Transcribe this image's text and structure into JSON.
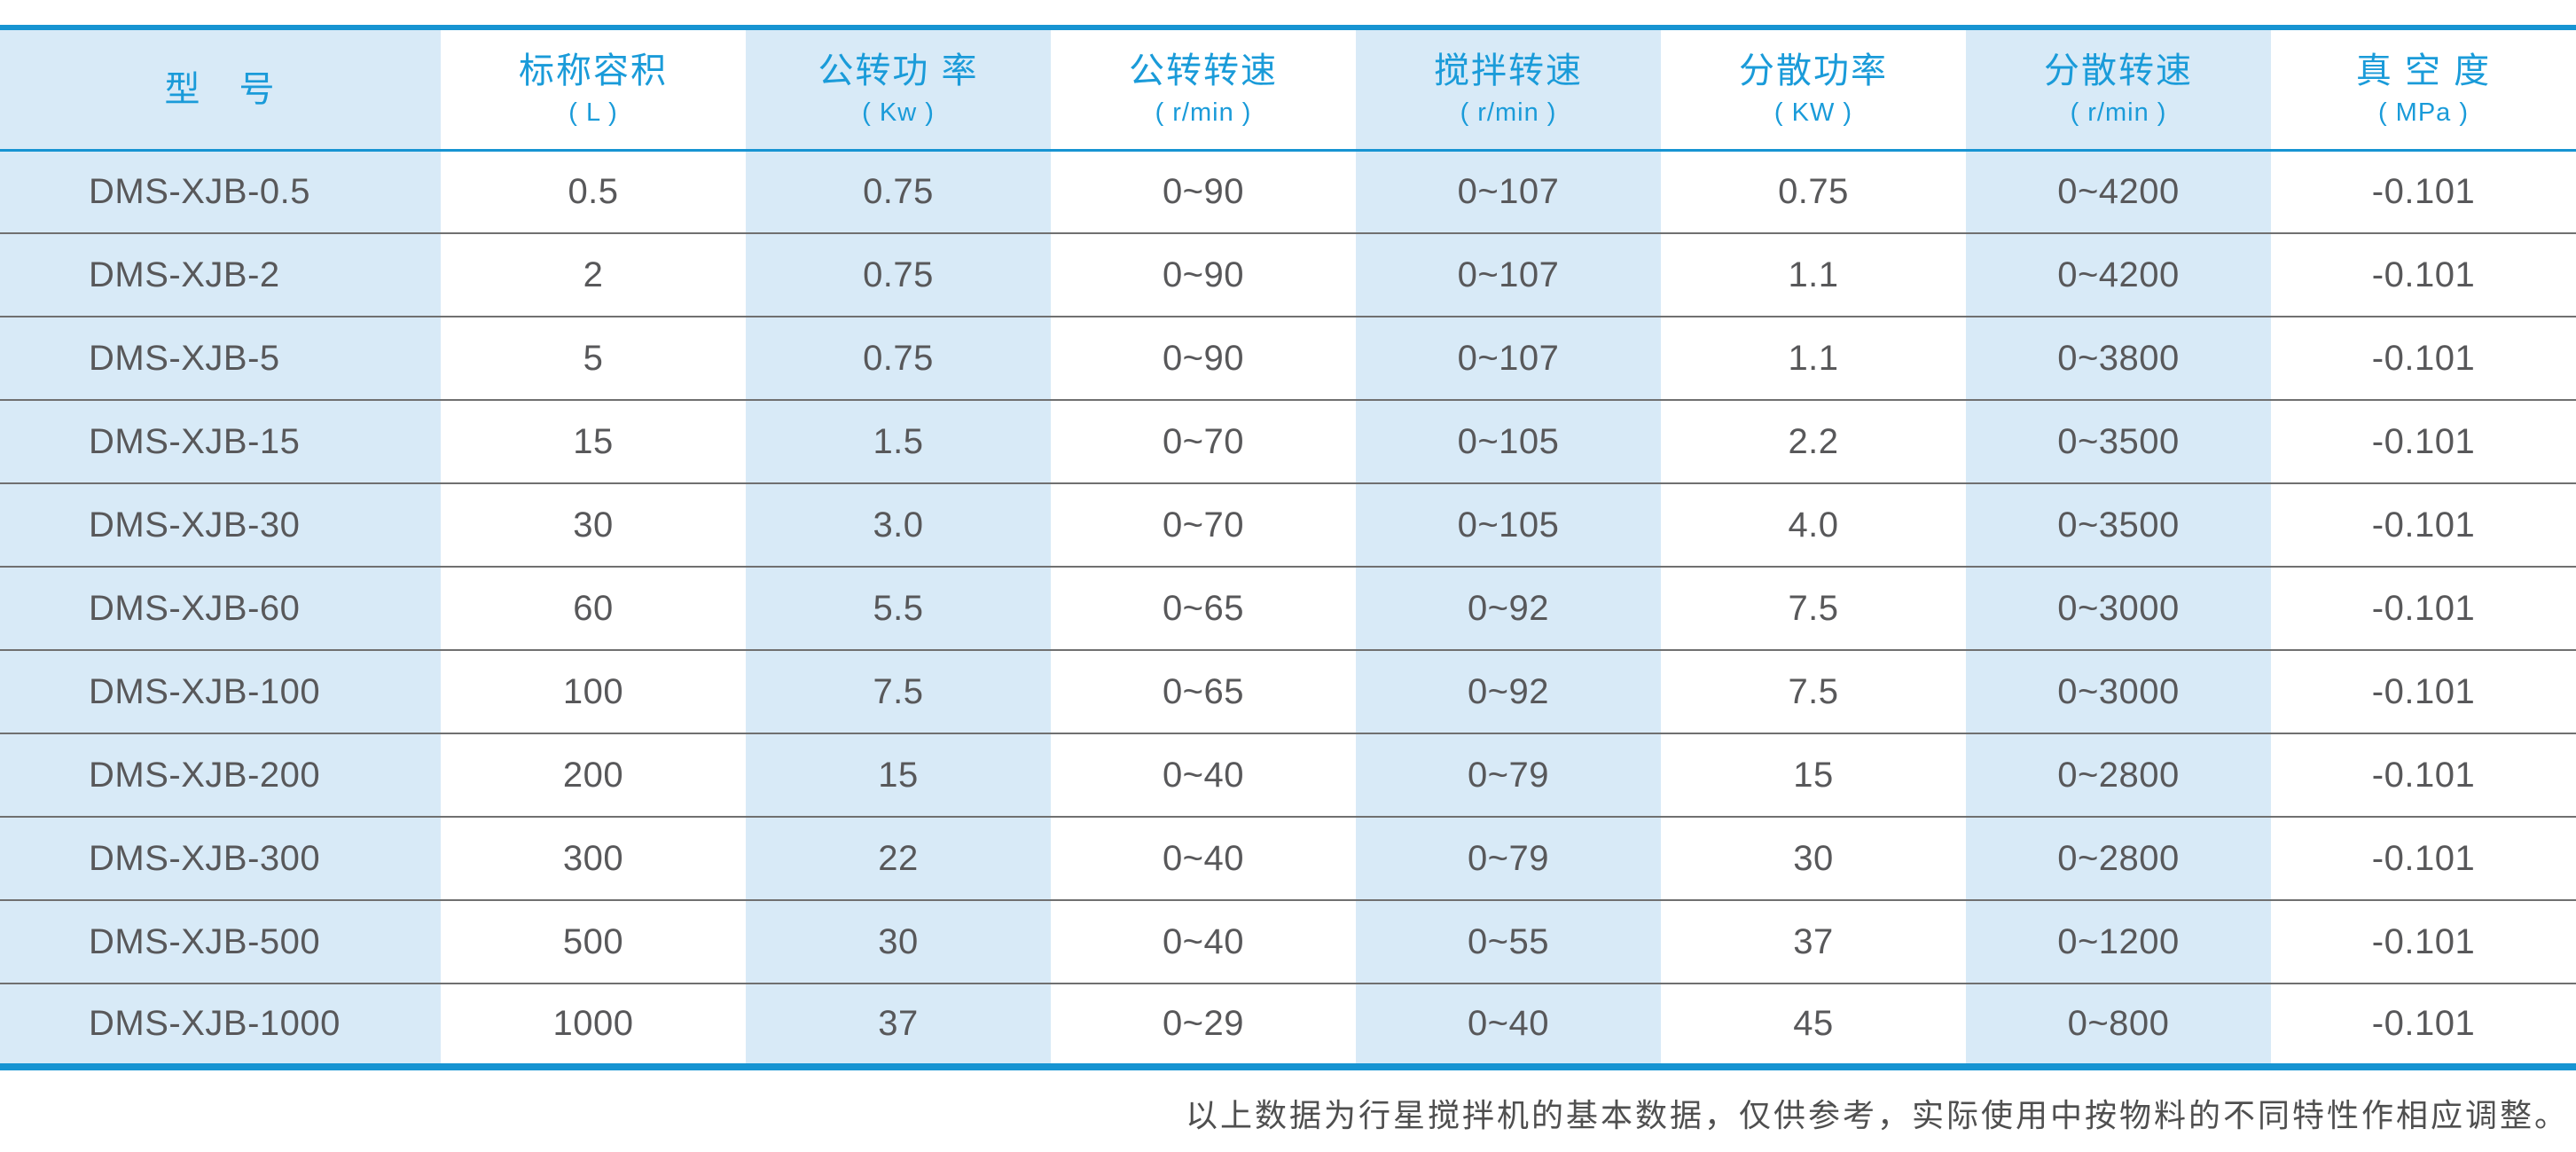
{
  "colors": {
    "accent_blue": "#1794d2",
    "header_text_blue": "#1a9bd9",
    "column_stripe_blue": "#d8eaf7",
    "body_text_gray": "#58585a",
    "row_separator_gray": "#707070",
    "footnote_gray": "#4f4f4f"
  },
  "table": {
    "columns": [
      {
        "name": "型　号",
        "unit": ""
      },
      {
        "name": "标称容积",
        "unit": "( L )"
      },
      {
        "name": "公转功 率",
        "unit": "( Kw )"
      },
      {
        "name": "公转转速",
        "unit": "( r/min )"
      },
      {
        "name": "搅拌转速",
        "unit": "( r/min )"
      },
      {
        "name": "分散功率",
        "unit": "( KW )"
      },
      {
        "name": "分散转速",
        "unit": "( r/min )"
      },
      {
        "name": "真 空 度",
        "unit": "( MPa )"
      }
    ],
    "rows": [
      [
        "DMS-XJB-0.5",
        "0.5",
        "0.75",
        "0~90",
        "0~107",
        "0.75",
        "0~4200",
        "-0.101"
      ],
      [
        "DMS-XJB-2",
        "2",
        "0.75",
        "0~90",
        "0~107",
        "1.1",
        "0~4200",
        "-0.101"
      ],
      [
        "DMS-XJB-5",
        "5",
        "0.75",
        "0~90",
        "0~107",
        "1.1",
        "0~3800",
        "-0.101"
      ],
      [
        "DMS-XJB-15",
        "15",
        "1.5",
        "0~70",
        "0~105",
        "2.2",
        "0~3500",
        "-0.101"
      ],
      [
        "DMS-XJB-30",
        "30",
        "3.0",
        "0~70",
        "0~105",
        "4.0",
        "0~3500",
        "-0.101"
      ],
      [
        "DMS-XJB-60",
        "60",
        "5.5",
        "0~65",
        "0~92",
        "7.5",
        "0~3000",
        "-0.101"
      ],
      [
        "DMS-XJB-100",
        "100",
        "7.5",
        "0~65",
        "0~92",
        "7.5",
        "0~3000",
        "-0.101"
      ],
      [
        "DMS-XJB-200",
        "200",
        "15",
        "0~40",
        "0~79",
        "15",
        "0~2800",
        "-0.101"
      ],
      [
        "DMS-XJB-300",
        "300",
        "22",
        "0~40",
        "0~79",
        "30",
        "0~2800",
        "-0.101"
      ],
      [
        "DMS-XJB-500",
        "500",
        "30",
        "0~40",
        "0~55",
        "37",
        "0~1200",
        "-0.101"
      ],
      [
        "DMS-XJB-1000",
        "1000",
        "37",
        "0~29",
        "0~40",
        "45",
        "0~800",
        "-0.101"
      ]
    ]
  },
  "footer": {
    "note": "以上数据为行星搅拌机的基本数据，仅供参考，实际使用中按物料的不同特性作相应调整。"
  },
  "chart_data": {
    "type": "table",
    "title": "行星搅拌机 DMS-XJB 系列技术参数",
    "categories": [
      "型号",
      "标称容积(L)",
      "公转功率(Kw)",
      "公转转速(r/min)",
      "搅拌转速(r/min)",
      "分散功率(KW)",
      "分散转速(r/min)",
      "真空度(MPa)"
    ],
    "series": [
      {
        "name": "标称容积(L)",
        "values": [
          0.5,
          2,
          5,
          15,
          30,
          60,
          100,
          200,
          300,
          500,
          1000
        ]
      },
      {
        "name": "公转功率(Kw)",
        "values": [
          0.75,
          0.75,
          0.75,
          1.5,
          3.0,
          5.5,
          7.5,
          15,
          22,
          30,
          37
        ]
      },
      {
        "name": "分散功率(KW)",
        "values": [
          0.75,
          1.1,
          1.1,
          2.2,
          4.0,
          7.5,
          7.5,
          15,
          30,
          37,
          45
        ]
      },
      {
        "name": "真空度(MPa)",
        "values": [
          -0.101,
          -0.101,
          -0.101,
          -0.101,
          -0.101,
          -0.101,
          -0.101,
          -0.101,
          -0.101,
          -0.101,
          -0.101
        ]
      }
    ]
  }
}
